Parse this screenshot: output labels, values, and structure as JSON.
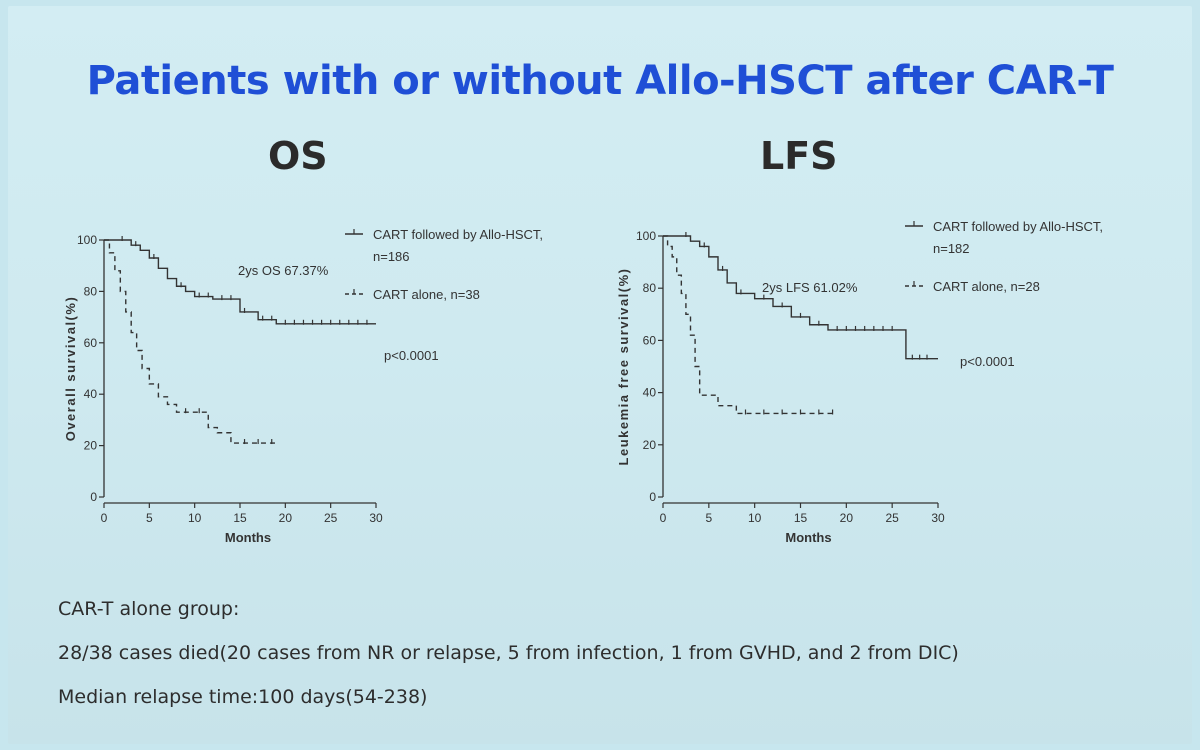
{
  "slide": {
    "title": "Patients with or without Allo-HSCT after CAR-T",
    "panel_titles": [
      "OS",
      "LFS"
    ],
    "notes": [
      "CAR-T alone group:",
      "28/38 cases died(20 cases from NR or relapse, 5 from infection, 1 from GVHD, and 2 from DIC)",
      "Median relapse time:100 days(54-238)"
    ]
  },
  "colors": {
    "title": "#1f4fd6",
    "background": "#cfeaf0",
    "ink": "#333333"
  },
  "chart_data": [
    {
      "type": "line",
      "title": "OS",
      "xlabel": "Months",
      "ylabel": "Overall survival(%)",
      "xlim": [
        0,
        30
      ],
      "ylim": [
        0,
        100
      ],
      "xticks": [
        0,
        5,
        10,
        15,
        20,
        25,
        30
      ],
      "yticks": [
        0,
        20,
        40,
        60,
        80,
        100
      ],
      "annotation": "2ys OS 67.37%",
      "pvalue": "p<0.0001",
      "series": [
        {
          "name": "CART followed by Allo-HSCT,",
          "name2": "n=186",
          "style": "solid",
          "x": [
            0,
            1.5,
            3,
            4,
            5,
            6,
            7,
            8,
            9,
            10,
            12,
            15,
            17,
            19,
            30
          ],
          "y": [
            100,
            100,
            98,
            96,
            93,
            89,
            85,
            82,
            80,
            78,
            77,
            72,
            69,
            67.4,
            67.4
          ],
          "censor_x": [
            2,
            3.5,
            5.5,
            8.5,
            10.5,
            11.5,
            13,
            14,
            15.5,
            17.5,
            18.5,
            20,
            21,
            22,
            23,
            24,
            25,
            26,
            27,
            28,
            29
          ]
        },
        {
          "name": "CART alone, n=38",
          "style": "dashed",
          "x": [
            0,
            0.6,
            1.2,
            1.8,
            2.4,
            3,
            3.6,
            4.2,
            5,
            6,
            7,
            8,
            11.5,
            12.5,
            14,
            19
          ],
          "y": [
            100,
            95,
            88,
            80,
            72,
            64,
            57,
            50,
            44,
            39,
            36,
            33,
            27,
            25,
            21,
            21
          ],
          "censor_x": [
            9,
            10.5,
            15.5,
            17,
            18.5
          ]
        }
      ]
    },
    {
      "type": "line",
      "title": "LFS",
      "xlabel": "Months",
      "ylabel": "Leukemia free survival(%)",
      "xlim": [
        0,
        30
      ],
      "ylim": [
        0,
        100
      ],
      "xticks": [
        0,
        5,
        10,
        15,
        20,
        25,
        30
      ],
      "yticks": [
        0,
        20,
        40,
        60,
        80,
        100
      ],
      "annotation": "2ys LFS 61.02%",
      "pvalue": "p<0.0001",
      "series": [
        {
          "name": "CART followed by Allo-HSCT,",
          "name2": "n=182",
          "style": "solid",
          "x": [
            0,
            2,
            3,
            4,
            5,
            6,
            7,
            8,
            10,
            12,
            14,
            16,
            18,
            26.5,
            30
          ],
          "y": [
            100,
            100,
            98,
            96,
            92,
            87,
            82,
            78,
            76,
            73,
            69,
            66,
            64,
            53,
            53
          ],
          "censor_x": [
            2.5,
            4.5,
            6.5,
            8.5,
            11,
            13,
            15,
            17,
            19,
            20,
            21,
            22,
            23,
            24,
            25,
            27.2,
            28,
            28.8
          ]
        },
        {
          "name": "CART alone, n=28",
          "style": "dashed",
          "x": [
            0,
            0.5,
            1,
            1.5,
            2,
            2.5,
            3,
            3.5,
            4,
            6,
            8,
            18.5
          ],
          "y": [
            100,
            96,
            92,
            85,
            78,
            70,
            62,
            50,
            39,
            35,
            32,
            32
          ],
          "censor_x": [
            9,
            11,
            13,
            15,
            17,
            18.5
          ]
        }
      ]
    }
  ]
}
